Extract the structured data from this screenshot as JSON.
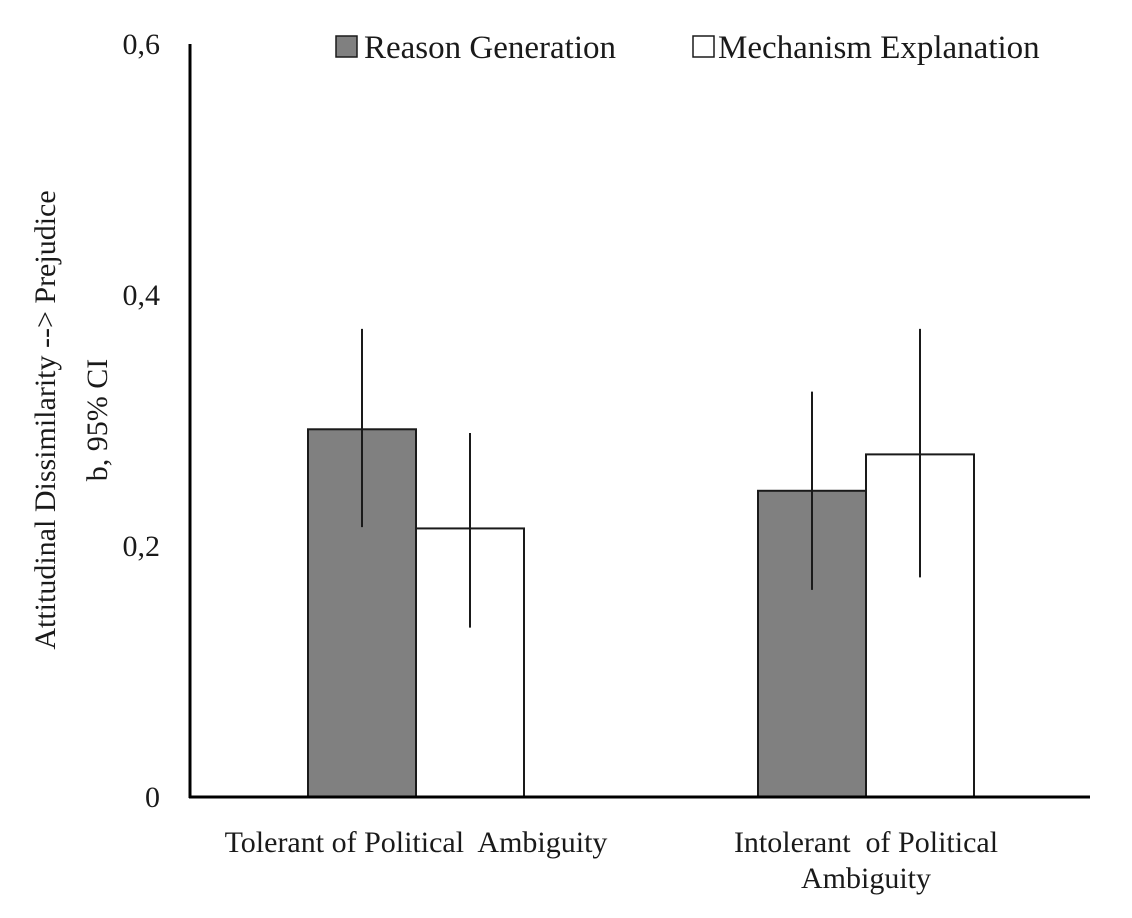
{
  "chart_data": {
    "type": "bar",
    "ylabel_line1": "Attitudinal Dissimilarity --> Prejudice",
    "ylabel_line2": "b, 95% CI",
    "ylim": [
      0,
      0.6
    ],
    "y_ticks": [
      {
        "value": 0,
        "label": "0"
      },
      {
        "value": 0.2,
        "label": "0,2"
      },
      {
        "value": 0.4,
        "label": "0,4"
      },
      {
        "value": 0.6,
        "label": "0,6"
      }
    ],
    "grid": false,
    "legend_position": "top-right",
    "categories": [
      {
        "lines": [
          "Tolerant of Political  Ambiguity"
        ]
      },
      {
        "lines": [
          "Intolerant  of Political",
          "Ambiguity"
        ]
      }
    ],
    "series": [
      {
        "name": "Reason Generation",
        "color": "#808080",
        "values": [
          0.293,
          0.244
        ],
        "ci_low": [
          0.215,
          0.165
        ],
        "ci_high": [
          0.373,
          0.323
        ]
      },
      {
        "name": "Mechanism Explanation",
        "color": "#ffffff",
        "values": [
          0.214,
          0.273
        ],
        "ci_low": [
          0.135,
          0.175
        ],
        "ci_high": [
          0.29,
          0.373
        ]
      }
    ]
  }
}
